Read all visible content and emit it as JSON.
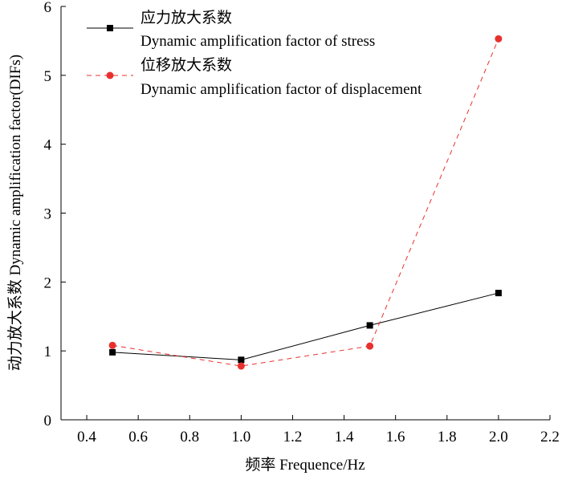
{
  "chart_data": {
    "type": "line",
    "title": "",
    "xlabel": "频率 Frequence/Hz",
    "ylabel": "动力放大系数 Dynamic amplification factor(DIFs)",
    "xlim": [
      0.3,
      2.2
    ],
    "ylim": [
      0,
      6
    ],
    "x_ticks": [
      "0.4",
      "0.6",
      "0.8",
      "1.0",
      "1.2",
      "1.4",
      "1.6",
      "1.8",
      "2.0",
      "2.2"
    ],
    "y_ticks": [
      "0",
      "1",
      "2",
      "3",
      "4",
      "5",
      "6"
    ],
    "grid": false,
    "legend_position": "top-left",
    "series": [
      {
        "name_cn": "应力放大系数",
        "name_en": "Dynamic amplification factor of stress",
        "color": "#000000",
        "marker": "square",
        "line_style": "solid",
        "x": [
          0.5,
          1.0,
          1.5,
          2.0
        ],
        "y": [
          0.98,
          0.87,
          1.37,
          1.84
        ]
      },
      {
        "name_cn": "位移放大系数",
        "name_en": "Dynamic amplification factor of displacement",
        "color": "#e8312f",
        "marker": "circle",
        "line_style": "dashed",
        "x": [
          0.5,
          1.0,
          1.5,
          2.0
        ],
        "y": [
          1.08,
          0.78,
          1.07,
          5.53
        ]
      }
    ]
  }
}
